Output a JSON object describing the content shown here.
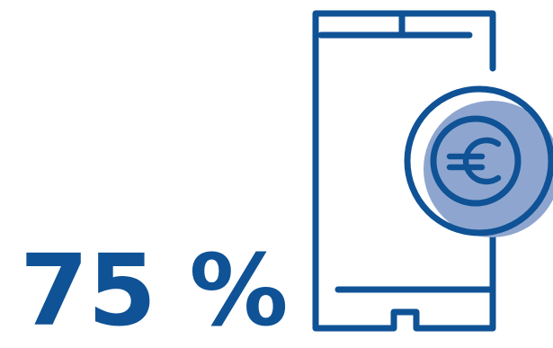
{
  "stat": {
    "value": "75 %"
  },
  "illustration": {
    "icons": [
      "smartphone-icon",
      "euro-coin-icon"
    ],
    "colors": {
      "primary": "#0f5296",
      "coin_fill": "#8ea6cf",
      "background": "#ffffff"
    }
  }
}
